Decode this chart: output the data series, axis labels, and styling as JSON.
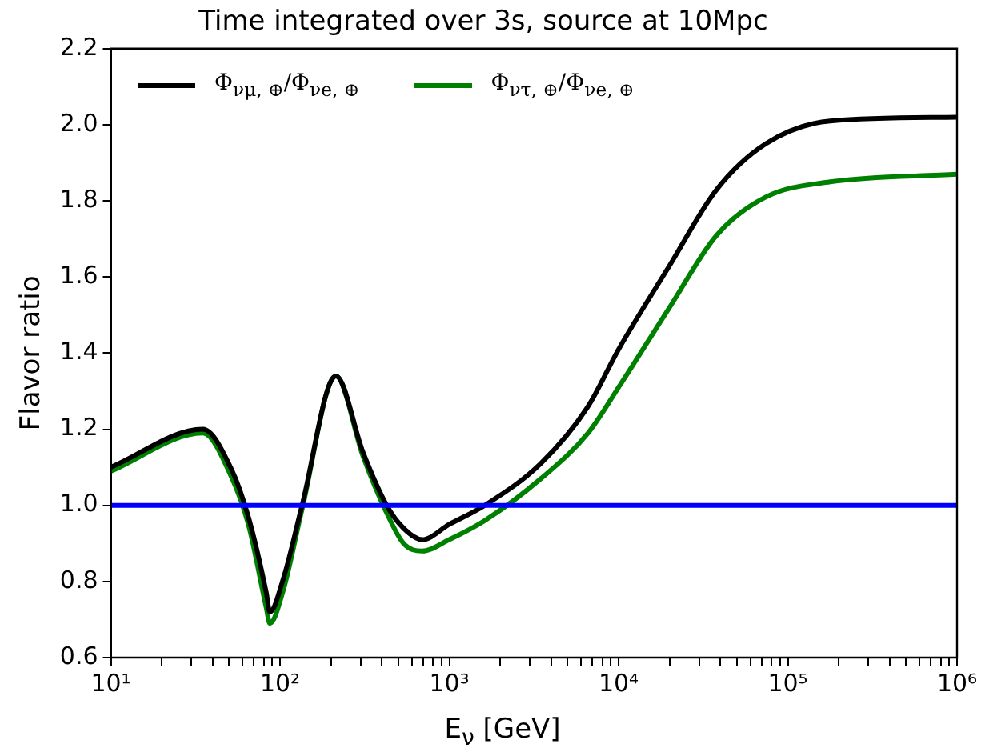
{
  "chart_data": {
    "type": "line",
    "title": "Time integrated over 3s, source at 10Mpc",
    "xlabel": "E$_{ν}$ [GeV]",
    "ylabel": "Flavor ratio",
    "log": "x",
    "legend": "top left",
    "grid": false,
    "marker": "none",
    "line_style": "solid",
    "x": [
      10,
      35,
      51,
      65,
      83,
      87,
      105,
      135,
      214,
      309,
      427,
      537,
      692,
      1000,
      1620,
      3470,
      6600,
      10000,
      20000,
      38000,
      74000,
      178000,
      1000000
    ],
    "series": [
      {
        "name": "Φ$_{νμ, ⊕}$/Φ$_{νe, ⊕}$",
        "color": "#000000",
        "values": [
          1.1,
          1.2,
          1.1,
          0.97,
          0.77,
          0.72,
          0.81,
          1.0,
          1.34,
          1.14,
          1.0,
          0.94,
          0.91,
          0.95,
          1.0,
          1.11,
          1.26,
          1.41,
          1.63,
          1.83,
          1.95,
          2.01,
          2.02
        ]
      },
      {
        "name": "Φ$_{ντ, ⊕}$/Φ$_{νe, ⊕}$",
        "color": "#008000",
        "values": [
          1.09,
          1.19,
          1.08,
          0.95,
          0.73,
          0.69,
          0.78,
          0.99,
          1.34,
          1.13,
          0.98,
          0.9,
          0.88,
          0.91,
          0.96,
          1.07,
          1.19,
          1.31,
          1.52,
          1.71,
          1.81,
          1.85,
          1.87
        ]
      }
    ],
    "ref_lines": [
      {
        "axis": "y",
        "value": 1,
        "color": "#0000ff"
      }
    ],
    "xlim": [
      10,
      1000000
    ],
    "xticks": [
      {
        "value": 10,
        "label": "10¹"
      },
      {
        "value": 20,
        "label": null
      },
      {
        "value": 30,
        "label": null
      },
      {
        "value": 40,
        "label": null
      },
      {
        "value": 50,
        "label": null
      },
      {
        "value": 60,
        "label": null
      },
      {
        "value": 70,
        "label": null
      },
      {
        "value": 80,
        "label": null
      },
      {
        "value": 90,
        "label": null
      },
      {
        "value": 100,
        "label": "10²"
      },
      {
        "value": 200,
        "label": null
      },
      {
        "value": 300,
        "label": null
      },
      {
        "value": 400,
        "label": null
      },
      {
        "value": 500,
        "label": null
      },
      {
        "value": 600,
        "label": null
      },
      {
        "value": 700,
        "label": null
      },
      {
        "value": 800,
        "label": null
      },
      {
        "value": 900,
        "label": null
      },
      {
        "value": 1000,
        "label": "10³"
      },
      {
        "value": 2000,
        "label": null
      },
      {
        "value": 3000,
        "label": null
      },
      {
        "value": 4000,
        "label": null
      },
      {
        "value": 5000,
        "label": null
      },
      {
        "value": 6000,
        "label": null
      },
      {
        "value": 7000,
        "label": null
      },
      {
        "value": 8000,
        "label": null
      },
      {
        "value": 9000,
        "label": null
      },
      {
        "value": 10000,
        "label": "10⁴"
      },
      {
        "value": 20000,
        "label": null
      },
      {
        "value": 30000,
        "label": null
      },
      {
        "value": 40000,
        "label": null
      },
      {
        "value": 50000,
        "label": null
      },
      {
        "value": 60000,
        "label": null
      },
      {
        "value": 70000,
        "label": null
      },
      {
        "value": 80000,
        "label": null
      },
      {
        "value": 90000,
        "label": null
      },
      {
        "value": 100000,
        "label": "10⁵"
      },
      {
        "value": 200000,
        "label": null
      },
      {
        "value": 300000,
        "label": null
      },
      {
        "value": 400000,
        "label": null
      },
      {
        "value": 500000,
        "label": null
      },
      {
        "value": 600000,
        "label": null
      },
      {
        "value": 700000,
        "label": null
      },
      {
        "value": 800000,
        "label": null
      },
      {
        "value": 900000,
        "label": null
      },
      {
        "value": 1000000,
        "label": "10⁶"
      }
    ],
    "ylim": [
      0.6,
      2.2
    ],
    "yticks": [
      0.6,
      0.8,
      {
        "value": 1,
        "label": "1.0"
      },
      1.2,
      1.4,
      1.6,
      1.8,
      {
        "value": 2,
        "label": "2.0"
      },
      2.2
    ]
  }
}
